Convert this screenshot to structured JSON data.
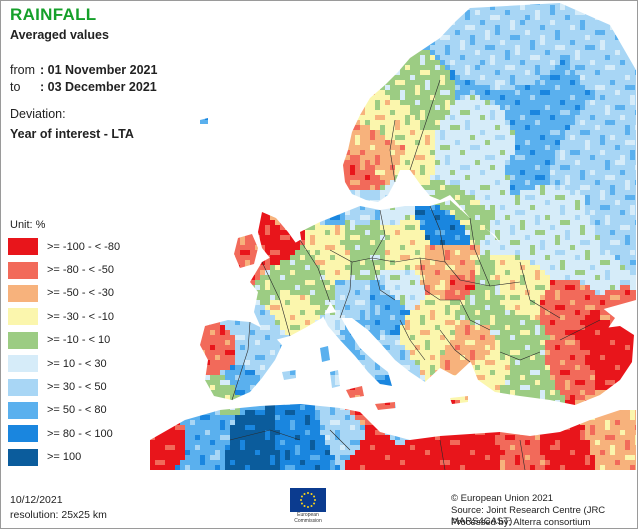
{
  "header": {
    "title": "RAINFALL",
    "subtitle": "Averaged values",
    "from_label": "from",
    "from_value": ": 01 November 2021",
    "to_label": "to",
    "to_value": ": 03 December 2021",
    "deviation_label": "Deviation:",
    "deviation_value": "Year of interest - LTA"
  },
  "legend": {
    "unit": "Unit: %",
    "items": [
      {
        "label": ">= -100 - < -80",
        "color": "#e8151b"
      },
      {
        "label": ">= -80 - < -50",
        "color": "#f26a5a"
      },
      {
        "label": ">= -50 - < -30",
        "color": "#f7b27c"
      },
      {
        "label": ">= -30 - < -10",
        "color": "#fbf6ad"
      },
      {
        "label": ">= -10 - < 10",
        "color": "#9ccc83"
      },
      {
        "label": ">= 10 - < 30",
        "color": "#d6ecf9"
      },
      {
        "label": ">= 30 - < 50",
        "color": "#a8d6f5"
      },
      {
        "label": ">= 50 - < 80",
        "color": "#5ab0ee"
      },
      {
        "label": ">= 80 - < 100",
        "color": "#1a86df"
      },
      {
        "label": ">= 100",
        "color": "#0b5c9c"
      }
    ]
  },
  "footer": {
    "date": "10/12/2021",
    "resolution": "resolution: 25x25 km",
    "copyright": "© European Union 2021",
    "source": "Source: Joint Research Centre (JRC MARS4CAST)",
    "processed": "Processed by: Alterra consortium",
    "logo_caption_1": "European",
    "logo_caption_2": "Commission"
  },
  "map": {
    "sea_color": "#ffffff",
    "border_color": "#2a2a2a"
  }
}
